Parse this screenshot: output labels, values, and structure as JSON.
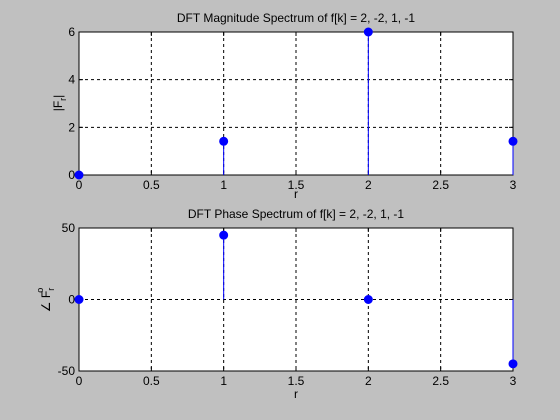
{
  "chart_data": [
    {
      "type": "stem",
      "title": "DFT Magnitude Spectrum of f[k] = 2, -2, 1, -1",
      "xlabel": "r",
      "ylabel": {
        "base": "|F",
        "sub": "r",
        "end": "|"
      },
      "xlim": [
        0,
        3
      ],
      "ylim": [
        0,
        6
      ],
      "xticks": [
        0,
        0.5,
        1,
        1.5,
        2,
        2.5,
        3
      ],
      "xtick_labels": [
        "0",
        "0.5",
        "1",
        "1.5",
        "2",
        "2.5",
        "3"
      ],
      "yticks": [
        0,
        2,
        4,
        6
      ],
      "ytick_labels": [
        "0",
        "2",
        "4",
        "6"
      ],
      "grid": true,
      "color": "#0000ff",
      "x": [
        0,
        1,
        2,
        3
      ],
      "values": [
        0,
        1.414,
        6,
        1.414
      ]
    },
    {
      "type": "stem",
      "title": "DFT Phase Spectrum of f[k] = 2, -2, 1, -1",
      "xlabel": "r",
      "ylabel": {
        "base": "∠ F",
        "sub": "r",
        "sup": "o"
      },
      "xlim": [
        0,
        3
      ],
      "ylim": [
        -50,
        50
      ],
      "xticks": [
        0,
        0.5,
        1,
        1.5,
        2,
        2.5,
        3
      ],
      "xtick_labels": [
        "0",
        "0.5",
        "1",
        "1.5",
        "2",
        "2.5",
        "3"
      ],
      "yticks": [
        -50,
        0,
        50
      ],
      "ytick_labels": [
        "-50",
        "0",
        "50"
      ],
      "grid": true,
      "color": "#0000ff",
      "x": [
        0,
        1,
        2,
        3
      ],
      "values": [
        0,
        45,
        0,
        -45
      ]
    }
  ]
}
